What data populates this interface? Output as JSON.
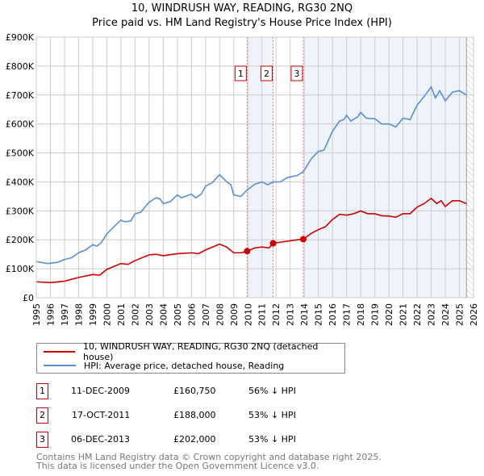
{
  "chart_data": {
    "type": "line",
    "title": "10, WINDRUSH WAY, READING, RG30 2NQ",
    "subtitle": "Price paid vs. HM Land Registry's House Price Index (HPI)",
    "xlim": [
      1995,
      2026
    ],
    "ylim": [
      0,
      900000
    ],
    "yticks": [
      "£0",
      "£100K",
      "£200K",
      "£300K",
      "£400K",
      "£500K",
      "£600K",
      "£700K",
      "£800K",
      "£900K"
    ],
    "xticks": [
      "1995",
      "1996",
      "1997",
      "1998",
      "1999",
      "2000",
      "2001",
      "2002",
      "2003",
      "2004",
      "2005",
      "2006",
      "2007",
      "2008",
      "2009",
      "2010",
      "2011",
      "2012",
      "2013",
      "2014",
      "2015",
      "2016",
      "2017",
      "2018",
      "2019",
      "2020",
      "2021",
      "2022",
      "2023",
      "2024",
      "2025",
      "2026"
    ],
    "grid": true,
    "colors": {
      "property": "#cc0000",
      "hpi": "#5b8fd0",
      "shade": "#eef3fc"
    },
    "shaded_ranges": [
      [
        2009.95,
        2011.79
      ],
      [
        2013.93,
        2025.5
      ]
    ],
    "forecast_from": 2025.5,
    "series": [
      {
        "name": "10, WINDRUSH WAY, READING, RG30 2NQ (detached house)",
        "key": "property",
        "points": [
          [
            1995,
            55
          ],
          [
            1996,
            52
          ],
          [
            1997,
            57
          ],
          [
            1998,
            70
          ],
          [
            1999,
            80
          ],
          [
            1999.5,
            78
          ],
          [
            2000,
            98
          ],
          [
            2001,
            118
          ],
          [
            2001.5,
            115
          ],
          [
            2002,
            128
          ],
          [
            2003,
            148
          ],
          [
            2003.5,
            150
          ],
          [
            2004,
            145
          ],
          [
            2005,
            152
          ],
          [
            2006,
            155
          ],
          [
            2006.5,
            152
          ],
          [
            2007,
            165
          ],
          [
            2008,
            185
          ],
          [
            2008.5,
            175
          ],
          [
            2009,
            155
          ],
          [
            2009.5,
            155
          ],
          [
            2009.95,
            160.75
          ],
          [
            2010.5,
            172
          ],
          [
            2011,
            175
          ],
          [
            2011.5,
            172
          ],
          [
            2011.79,
            188
          ],
          [
            2012.5,
            193
          ],
          [
            2013.5,
            200
          ],
          [
            2013.93,
            202
          ],
          [
            2014.5,
            222
          ],
          [
            2015,
            235
          ],
          [
            2015.5,
            245
          ],
          [
            2016,
            270
          ],
          [
            2016.5,
            288
          ],
          [
            2017,
            285
          ],
          [
            2017.5,
            290
          ],
          [
            2018,
            300
          ],
          [
            2018.5,
            290
          ],
          [
            2019,
            290
          ],
          [
            2019.5,
            283
          ],
          [
            2020,
            282
          ],
          [
            2020.5,
            278
          ],
          [
            2021,
            290
          ],
          [
            2021.5,
            290
          ],
          [
            2022,
            313
          ],
          [
            2022.5,
            325
          ],
          [
            2023,
            343
          ],
          [
            2023.4,
            325
          ],
          [
            2023.7,
            335
          ],
          [
            2024,
            315
          ],
          [
            2024.5,
            335
          ],
          [
            2025,
            335
          ],
          [
            2025.5,
            325
          ]
        ]
      },
      {
        "name": "HPI: Average price, detached house, Reading",
        "key": "hpi",
        "points": [
          [
            1995,
            125
          ],
          [
            1995.8,
            118
          ],
          [
            1996.5,
            122
          ],
          [
            1997,
            132
          ],
          [
            1997.5,
            138
          ],
          [
            1998,
            155
          ],
          [
            1998.5,
            165
          ],
          [
            1999,
            183
          ],
          [
            1999.3,
            178
          ],
          [
            1999.6,
            190
          ],
          [
            2000,
            220
          ],
          [
            2000.5,
            245
          ],
          [
            2001,
            268
          ],
          [
            2001.3,
            262
          ],
          [
            2001.7,
            265
          ],
          [
            2002,
            290
          ],
          [
            2002.4,
            295
          ],
          [
            2003,
            330
          ],
          [
            2003.5,
            345
          ],
          [
            2003.8,
            340
          ],
          [
            2004,
            325
          ],
          [
            2004.5,
            332
          ],
          [
            2005,
            355
          ],
          [
            2005.3,
            345
          ],
          [
            2006,
            358
          ],
          [
            2006.3,
            345
          ],
          [
            2006.7,
            358
          ],
          [
            2007,
            385
          ],
          [
            2007.5,
            398
          ],
          [
            2008,
            425
          ],
          [
            2008.5,
            400
          ],
          [
            2008.8,
            390
          ],
          [
            2009,
            355
          ],
          [
            2009.5,
            350
          ],
          [
            2009.95,
            372
          ],
          [
            2010.5,
            392
          ],
          [
            2011,
            400
          ],
          [
            2011.4,
            390
          ],
          [
            2011.8,
            400
          ],
          [
            2012.3,
            400
          ],
          [
            2012.8,
            415
          ],
          [
            2013.5,
            422
          ],
          [
            2013.93,
            435
          ],
          [
            2014.5,
            480
          ],
          [
            2015,
            505
          ],
          [
            2015.4,
            510
          ],
          [
            2016,
            575
          ],
          [
            2016.5,
            610
          ],
          [
            2016.8,
            615
          ],
          [
            2017,
            630
          ],
          [
            2017.3,
            610
          ],
          [
            2017.8,
            625
          ],
          [
            2018,
            640
          ],
          [
            2018.4,
            620
          ],
          [
            2019,
            618
          ],
          [
            2019.5,
            600
          ],
          [
            2020,
            600
          ],
          [
            2020.5,
            590
          ],
          [
            2021,
            620
          ],
          [
            2021.5,
            615
          ],
          [
            2022,
            665
          ],
          [
            2022.5,
            695
          ],
          [
            2023,
            728
          ],
          [
            2023.3,
            690
          ],
          [
            2023.6,
            715
          ],
          [
            2024,
            680
          ],
          [
            2024.5,
            710
          ],
          [
            2025,
            715
          ],
          [
            2025.5,
            700
          ]
        ]
      }
    ],
    "value_unit": "thousands GBP",
    "sales": [
      {
        "label": "1",
        "x": 2009.95,
        "value": 160.75,
        "date": "11-DEC-2009",
        "price": "£160,750",
        "hpi": "56% ↓ HPI"
      },
      {
        "label": "2",
        "x": 2011.79,
        "value": 188,
        "date": "17-OCT-2011",
        "price": "£188,000",
        "hpi": "53% ↓ HPI"
      },
      {
        "label": "3",
        "x": 2013.93,
        "value": 202,
        "date": "06-DEC-2013",
        "price": "£202,000",
        "hpi": "53% ↓ HPI"
      }
    ]
  },
  "footer": {
    "line1": "Contains HM Land Registry data © Crown copyright and database right 2025.",
    "line2": "This data is licensed under the Open Government Licence v3.0."
  }
}
